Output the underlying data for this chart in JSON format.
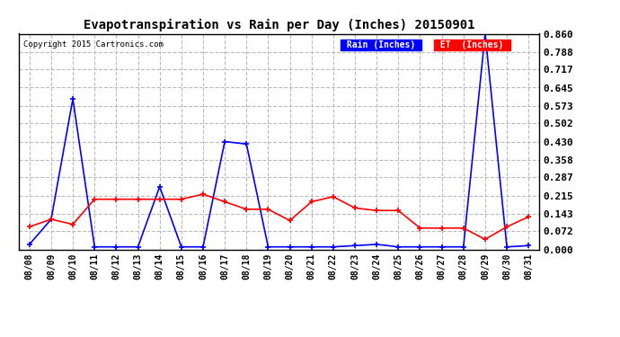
{
  "title": "Evapotranspiration vs Rain per Day (Inches) 20150901",
  "copyright": "Copyright 2015 Cartronics.com",
  "x_labels": [
    "08/08",
    "08/09",
    "08/10",
    "08/11",
    "08/12",
    "08/13",
    "08/14",
    "08/15",
    "08/16",
    "08/17",
    "08/18",
    "08/19",
    "08/20",
    "08/21",
    "08/22",
    "08/23",
    "08/24",
    "08/25",
    "08/26",
    "08/27",
    "08/28",
    "08/29",
    "08/30",
    "08/31"
  ],
  "rain_inches": [
    0.02,
    0.12,
    0.6,
    0.01,
    0.01,
    0.01,
    0.25,
    0.01,
    0.01,
    0.43,
    0.42,
    0.01,
    0.01,
    0.01,
    0.01,
    0.015,
    0.02,
    0.01,
    0.01,
    0.01,
    0.01,
    0.86,
    0.01,
    0.015
  ],
  "et_inches": [
    0.09,
    0.12,
    0.1,
    0.2,
    0.2,
    0.2,
    0.2,
    0.2,
    0.22,
    0.19,
    0.16,
    0.16,
    0.115,
    0.19,
    0.21,
    0.165,
    0.155,
    0.155,
    0.085,
    0.085,
    0.085,
    0.04,
    0.09,
    0.13
  ],
  "rain_color": "#0000ff",
  "et_color": "#ff0000",
  "background_color": "#ffffff",
  "grid_color": "#bbbbbb",
  "ylim": [
    0.0,
    0.86
  ],
  "yticks": [
    0.0,
    0.072,
    0.143,
    0.215,
    0.287,
    0.358,
    0.43,
    0.502,
    0.573,
    0.645,
    0.717,
    0.788,
    0.86
  ],
  "legend_rain_bg": "#0000ff",
  "legend_et_bg": "#ff0000",
  "legend_rain_label": "Rain (Inches)",
  "legend_et_label": "ET  (Inches)"
}
